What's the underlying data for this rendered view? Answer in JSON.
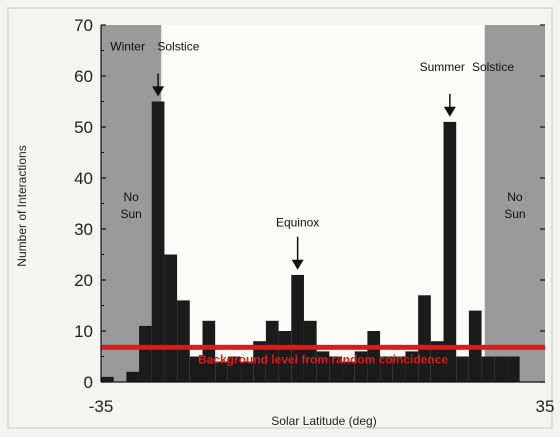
{
  "chart_data": {
    "type": "bar",
    "xlabel": "Solar Latitude (deg)",
    "ylabel": "Number of Interactions",
    "xlim": [
      -35,
      35
    ],
    "ylim": [
      0,
      70
    ],
    "x_ticks": [
      "-35",
      "35"
    ],
    "y_ticks": [
      "0",
      "10",
      "20",
      "30",
      "40",
      "50",
      "60",
      "70"
    ],
    "bin_width_deg": 2,
    "bins": [
      {
        "x": -34,
        "value": 1
      },
      {
        "x": -32,
        "value": 0
      },
      {
        "x": -30,
        "value": 2
      },
      {
        "x": -28,
        "value": 11
      },
      {
        "x": -26,
        "value": 55
      },
      {
        "x": -24,
        "value": 25
      },
      {
        "x": -22,
        "value": 16
      },
      {
        "x": -20,
        "value": 5
      },
      {
        "x": -18,
        "value": 12
      },
      {
        "x": -16,
        "value": 4
      },
      {
        "x": -14,
        "value": 5
      },
      {
        "x": -12,
        "value": 4
      },
      {
        "x": -10,
        "value": 8
      },
      {
        "x": -8,
        "value": 12
      },
      {
        "x": -6,
        "value": 10
      },
      {
        "x": -4,
        "value": 21
      },
      {
        "x": -2,
        "value": 12
      },
      {
        "x": 0,
        "value": 6
      },
      {
        "x": 2,
        "value": 5
      },
      {
        "x": 4,
        "value": 4
      },
      {
        "x": 6,
        "value": 6
      },
      {
        "x": 8,
        "value": 10
      },
      {
        "x": 10,
        "value": 5
      },
      {
        "x": 12,
        "value": 5
      },
      {
        "x": 14,
        "value": 6
      },
      {
        "x": 16,
        "value": 17
      },
      {
        "x": 18,
        "value": 8
      },
      {
        "x": 20,
        "value": 51
      },
      {
        "x": 22,
        "value": 5
      },
      {
        "x": 24,
        "value": 14
      },
      {
        "x": 26,
        "value": 5
      },
      {
        "x": 28,
        "value": 5
      },
      {
        "x": 30,
        "value": 5
      }
    ],
    "background_level": {
      "value": 6.8,
      "label": "Background level from random coincidence",
      "color": "#e01818"
    },
    "no_sun_regions": [
      {
        "from": -35,
        "to": -25.5,
        "label_line1": "No",
        "label_line2": "Sun"
      },
      {
        "from": 25.5,
        "to": 35,
        "label_line1": "No",
        "label_line2": "Sun"
      }
    ],
    "annotations": [
      {
        "text": "Winter",
        "x": -30.8,
        "y": 65,
        "anchor": "middle"
      },
      {
        "text": "Solstice",
        "x": -22.8,
        "y": 65,
        "anchor": "middle"
      },
      {
        "text": "Summer",
        "x": 18.8,
        "y": 61,
        "anchor": "middle"
      },
      {
        "text": "Solstice",
        "x": 26.8,
        "y": 61,
        "anchor": "middle"
      },
      {
        "text": "Equinox",
        "x": -4,
        "y": 30.5,
        "anchor": "middle"
      }
    ],
    "arrows": [
      {
        "x": -26,
        "y_from": 60.5,
        "y_to": 56
      },
      {
        "x": 20,
        "y_from": 56.5,
        "y_to": 52
      },
      {
        "x": -4,
        "y_from": 28.5,
        "y_to": 22
      }
    ],
    "colors": {
      "bar": "#1b1b1b",
      "shade": "#9a9a9a",
      "plot_bg": "#fbfbf8",
      "page_bg": "#f4f4f2"
    }
  }
}
